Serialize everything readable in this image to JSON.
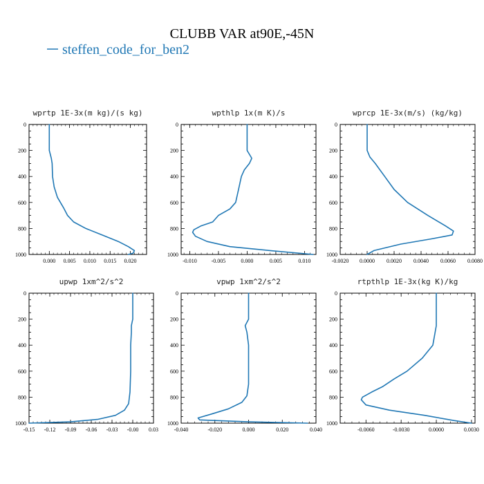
{
  "figure": {
    "title": "CLUBB VAR at90E,-45N",
    "legend_label": "steffen_code_for_ben2",
    "line_color": "#1f77b4"
  },
  "chart_data": [
    {
      "type": "line",
      "title": "wprtp  1E-3x(m kg)/(s kg)",
      "ylim": [
        1000,
        0
      ],
      "yticks": [
        "0",
        "200",
        "400",
        "600",
        "800",
        "1000"
      ],
      "xlim": [
        -0.005,
        0.024
      ],
      "xticks": [
        0.0,
        0.005,
        0.01,
        0.015,
        0.02
      ],
      "xticklabels": [
        "0.000",
        "0.005",
        "0.010",
        "0.015",
        "0.020"
      ],
      "series": [
        {
          "x": [
            0.0,
            0.0,
            0.0,
            0.0005,
            0.0007,
            0.0008,
            0.0012,
            0.002,
            0.0035,
            0.0045,
            0.006,
            0.009,
            0.013,
            0.017,
            0.0195,
            0.021,
            0.0207,
            0.0195
          ],
          "y": [
            0,
            100,
            200,
            260,
            300,
            400,
            480,
            560,
            640,
            700,
            750,
            800,
            850,
            900,
            940,
            970,
            990,
            1000
          ]
        }
      ]
    },
    {
      "type": "line",
      "title": "wpthlp  1x(m K)/s",
      "ylim": [
        1000,
        0
      ],
      "yticks": [
        "0",
        "200",
        "400",
        "600",
        "800",
        "1000"
      ],
      "xlim": [
        -0.0115,
        0.012
      ],
      "xticks": [
        -0.01,
        -0.005,
        0.0,
        0.005,
        0.01
      ],
      "xticklabels": [
        "-0.010",
        "-0.005",
        "0.000",
        "0.005",
        "0.010"
      ],
      "series": [
        {
          "x": [
            0.0,
            0.0,
            0.0,
            0.0008,
            0.0004,
            -0.0005,
            -0.001,
            -0.0015,
            -0.002,
            -0.003,
            -0.005,
            -0.006,
            -0.008,
            -0.0093,
            -0.0095,
            -0.009,
            -0.007,
            -0.003,
            0.004,
            0.0115
          ],
          "y": [
            0,
            100,
            200,
            260,
            300,
            350,
            400,
            500,
            600,
            650,
            700,
            750,
            780,
            810,
            830,
            860,
            900,
            940,
            970,
            1000
          ]
        }
      ]
    },
    {
      "type": "line",
      "title": "wprcp  1E-3x(m/s) (kg/kg)",
      "ylim": [
        1000,
        0
      ],
      "yticks": [
        "0",
        "200",
        "400",
        "600",
        "800",
        "1000"
      ],
      "xlim": [
        -0.002,
        0.008
      ],
      "xticks": [
        -0.002,
        0.0,
        0.002,
        0.004,
        0.006,
        0.008
      ],
      "xticklabels": [
        "-0.0020",
        "0.0000",
        "0.0020",
        "0.0040",
        "0.0060",
        "0.0080"
      ],
      "series": [
        {
          "x": [
            0.0,
            0.0,
            0.0,
            0.0002,
            0.0006,
            0.0013,
            0.002,
            0.003,
            0.0045,
            0.0058,
            0.0064,
            0.0063,
            0.0048,
            0.0025,
            0.0005,
            0.0
          ],
          "y": [
            0,
            100,
            200,
            250,
            300,
            400,
            500,
            600,
            700,
            780,
            820,
            850,
            880,
            920,
            970,
            1000
          ]
        }
      ]
    },
    {
      "type": "line",
      "title": "upwp  1xm^2/s^2",
      "ylim": [
        1000,
        0
      ],
      "yticks": [
        "0",
        "200",
        "400",
        "600",
        "800",
        "1000"
      ],
      "xlim": [
        -0.15,
        0.03
      ],
      "xticks": [
        -0.15,
        -0.12,
        -0.09,
        -0.06,
        -0.03,
        0.0,
        0.03
      ],
      "xticklabels": [
        "-0.15",
        "-0.12",
        "-0.09",
        "-0.06",
        "-0.03",
        "-0.00",
        "0.03"
      ],
      "series": [
        {
          "x": [
            0.0,
            0.0,
            0.0,
            -0.002,
            -0.002,
            -0.003,
            -0.003,
            -0.004,
            -0.006,
            -0.012,
            -0.025,
            -0.05,
            -0.09,
            -0.15
          ],
          "y": [
            0,
            100,
            200,
            250,
            300,
            400,
            600,
            760,
            850,
            900,
            940,
            970,
            990,
            1000
          ]
        }
      ]
    },
    {
      "type": "line",
      "title": "vpwp  1xm^2/s^2",
      "ylim": [
        1000,
        0
      ],
      "yticks": [
        "0",
        "200",
        "400",
        "600",
        "800",
        "1000"
      ],
      "xlim": [
        -0.04,
        0.04
      ],
      "xticks": [
        -0.04,
        -0.02,
        0.0,
        0.02,
        0.04
      ],
      "xticklabels": [
        "-0.040",
        "-0.020",
        "0.000",
        "0.020",
        "0.040"
      ],
      "series": [
        {
          "x": [
            0.0,
            0.0,
            0.0,
            -0.002,
            -0.001,
            -0.0005,
            0.0,
            0.0,
            -0.001,
            -0.004,
            -0.012,
            -0.022,
            -0.03,
            -0.029,
            0.0,
            0.035
          ],
          "y": [
            0,
            100,
            200,
            250,
            300,
            350,
            400,
            700,
            790,
            840,
            890,
            930,
            960,
            975,
            990,
            1000
          ]
        }
      ]
    },
    {
      "type": "line",
      "title": "rtpthlp  1E-3x(kg K)/kg",
      "ylim": [
        1000,
        0
      ],
      "yticks": [
        "0",
        "200",
        "400",
        "600",
        "800",
        "1000"
      ],
      "xlim": [
        -0.0082,
        0.0033
      ],
      "xticks": [
        -0.006,
        -0.003,
        0.0,
        0.003
      ],
      "xticklabels": [
        "-0.0060",
        "-0.0030",
        "0.0000",
        "0.0030"
      ],
      "series": [
        {
          "x": [
            0.0,
            0.0,
            0.0,
            -0.0003,
            -0.0012,
            -0.0025,
            -0.0036,
            -0.0046,
            -0.0055,
            -0.0063,
            -0.0064,
            -0.006,
            -0.004,
            -0.001,
            0.0015,
            0.003
          ],
          "y": [
            0,
            100,
            250,
            400,
            500,
            600,
            660,
            720,
            760,
            800,
            820,
            860,
            900,
            940,
            980,
            1000
          ]
        }
      ]
    }
  ]
}
